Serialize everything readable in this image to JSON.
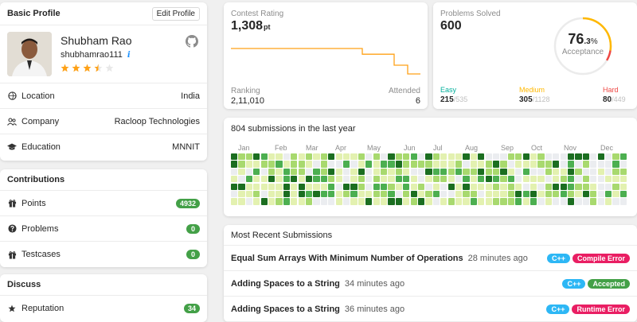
{
  "profile": {
    "header": "Basic Profile",
    "edit_label": "Edit Profile",
    "name": "Shubham Rao",
    "username": "shubhamrao111",
    "info_icon": "i",
    "stars": 3.5,
    "rows": [
      {
        "icon": "location-icon",
        "label": "Location",
        "value": "India"
      },
      {
        "icon": "company-icon",
        "label": "Company",
        "value": "Racloop Technologies"
      },
      {
        "icon": "education-icon",
        "label": "Education",
        "value": "MNNIT"
      }
    ]
  },
  "contributions": {
    "header": "Contributions",
    "rows": [
      {
        "icon": "gift-icon",
        "label": "Points",
        "value": "4932"
      },
      {
        "icon": "question-icon",
        "label": "Problems",
        "value": "0"
      },
      {
        "icon": "gift-icon",
        "label": "Testcases",
        "value": "0"
      }
    ]
  },
  "discuss": {
    "header": "Discuss",
    "rows": [
      {
        "icon": "star-icon",
        "label": "Reputation",
        "value": "34"
      }
    ]
  },
  "rating": {
    "label": "Contest Rating",
    "value": "1,308",
    "unit": "pt",
    "ranking_label": "Ranking",
    "ranking_value": "2,11,010",
    "attended_label": "Attended",
    "attended_value": "6",
    "line_color": "#ffa116",
    "series": [
      1308,
      1308,
      1308,
      1308,
      1295,
      1295,
      1270,
      1250,
      1250
    ]
  },
  "solved": {
    "label": "Problems Solved",
    "value": "600",
    "acceptance_value": "76",
    "acceptance_decimal": ".3",
    "acceptance_pct": "%",
    "acceptance_label": "Acceptance",
    "acceptance_fraction": 0.763,
    "easy": {
      "label": "Easy",
      "solved": "215",
      "total": "/535",
      "color": "#00af9b"
    },
    "medium": {
      "label": "Medium",
      "solved": "305",
      "total": "/1128",
      "color": "#ffb800"
    },
    "hard": {
      "label": "Hard",
      "solved": "80",
      "total": "/449",
      "color": "#ef4743"
    }
  },
  "heatmap": {
    "title": "804 submissions in the last year",
    "months": [
      "Jan",
      "Feb",
      "Mar",
      "Apr",
      "May",
      "Jun",
      "Jul",
      "Aug",
      "Sep",
      "Oct",
      "Nov",
      "Dec"
    ],
    "colors": [
      "#ebedf0",
      "#e3f1b0",
      "#a8d96e",
      "#4caf50",
      "#1b6e20"
    ]
  },
  "recent": {
    "header": "Most Recent Submissions",
    "items": [
      {
        "title": "Equal Sum Arrays With Minimum Number of Operations",
        "time": "28 minutes ago",
        "lang": "C++",
        "status": "Compile Error",
        "status_color": "#e91e63"
      },
      {
        "title": "Adding Spaces to a String",
        "time": "34 minutes ago",
        "lang": "C++",
        "status": "Accepted",
        "status_color": "#43a047"
      },
      {
        "title": "Adding Spaces to a String",
        "time": "36 minutes ago",
        "lang": "C++",
        "status": "Runtime Error",
        "status_color": "#e91e63"
      }
    ]
  }
}
